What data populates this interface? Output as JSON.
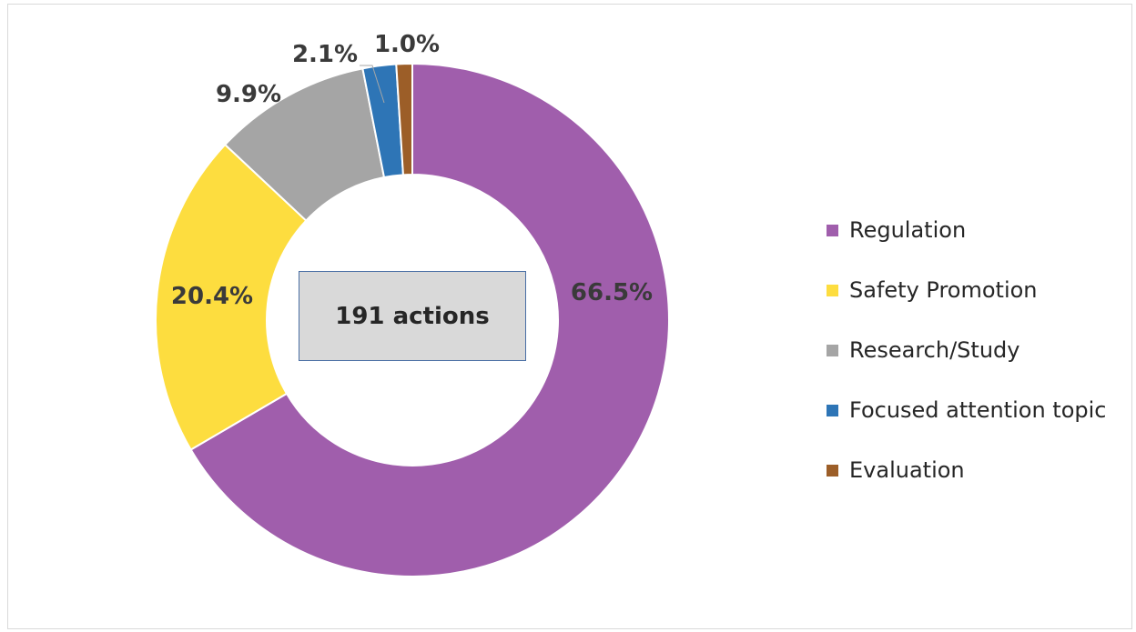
{
  "chart_data": {
    "type": "pie",
    "center_label": "191 actions",
    "slices": [
      {
        "label": "Regulation",
        "value": 66.5,
        "value_label": "66.5%",
        "color": "#a05eac"
      },
      {
        "label": "Safety Promotion",
        "value": 20.4,
        "value_label": "20.4%",
        "color": "#fddd3f"
      },
      {
        "label": "Research/Study",
        "value": 9.9,
        "value_label": "9.9%",
        "color": "#a5a5a5"
      },
      {
        "label": "Focused attention topic",
        "value": 2.1,
        "value_label": "2.1%",
        "color": "#2e75b6"
      },
      {
        "label": "Evaluation",
        "value": 1.0,
        "value_label": "1.0%",
        "color": "#9c5e28"
      }
    ],
    "legend_position": "right"
  }
}
